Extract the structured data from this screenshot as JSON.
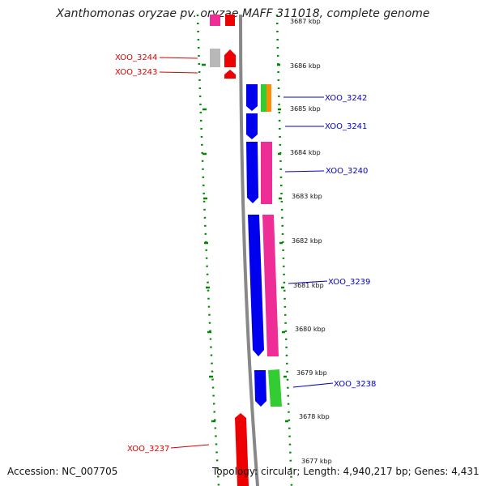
{
  "title": "Xanthomonas oryzae pv. oryzae MAFF 311018, complete genome",
  "footer": {
    "accession": "Accession: NC_007705",
    "topology": "Topology: circular; Length: 4,940,217 bp; Genes: 4,431"
  },
  "scale_ticks": [
    {
      "label": "3687 kbp",
      "kbp": 3687
    },
    {
      "label": "3686 kbp",
      "kbp": 3686
    },
    {
      "label": "3685 kbp",
      "kbp": 3685
    },
    {
      "label": "3684 kbp",
      "kbp": 3684
    },
    {
      "label": "3683 kbp",
      "kbp": 3683
    },
    {
      "label": "3682 kbp",
      "kbp": 3682
    },
    {
      "label": "3681 kbp",
      "kbp": 3681
    },
    {
      "label": "3680 kbp",
      "kbp": 3680
    },
    {
      "label": "3679 kbp",
      "kbp": 3679
    },
    {
      "label": "3678 kbp",
      "kbp": 3678
    },
    {
      "label": "3677 kbp",
      "kbp": 3677
    }
  ],
  "gene_labels": [
    {
      "id": "XOO_3244",
      "text": "XOO_3244",
      "strand": "reverse"
    },
    {
      "id": "XOO_3243",
      "text": "XOO_3243",
      "strand": "reverse"
    },
    {
      "id": "XOO_3242",
      "text": "XOO_3242",
      "strand": "forward"
    },
    {
      "id": "XOO_3241",
      "text": "XOO_3241",
      "strand": "forward"
    },
    {
      "id": "XOO_3240",
      "text": "XOO_3240",
      "strand": "forward"
    },
    {
      "id": "XOO_3239",
      "text": "XOO_3239",
      "strand": "forward"
    },
    {
      "id": "XOO_3238",
      "text": "XOO_3238",
      "strand": "forward"
    },
    {
      "id": "XOO_3237",
      "text": "XOO_3237",
      "strand": "reverse"
    }
  ],
  "colors": {
    "forward_label": "#0000cc",
    "reverse_label": "#dd0000",
    "forward_gene": "#0000ee",
    "reverse_gene": "#ee0000",
    "grey_gene": "#b8b8b8",
    "pink_feature": "#ee2d96",
    "green_feature": "#33cc33",
    "orange_feature": "#ff8c00",
    "backbone": "#888888",
    "dotted_ring": "#008800"
  }
}
